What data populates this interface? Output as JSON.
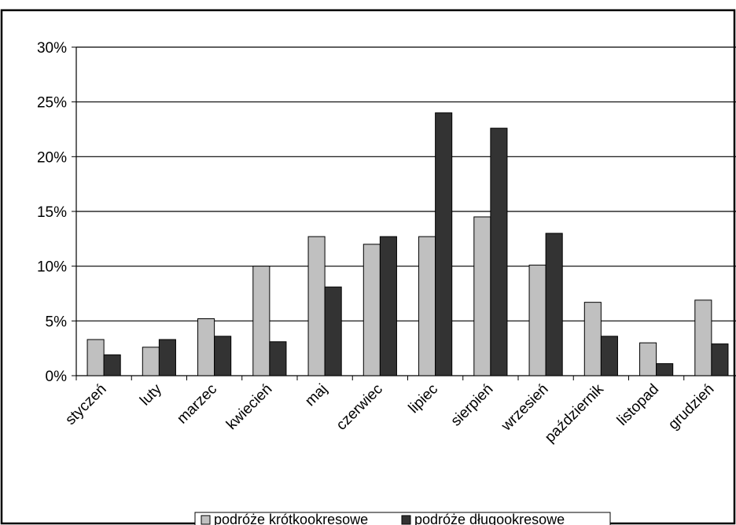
{
  "chart_data": {
    "type": "bar",
    "categories": [
      "styczeń",
      "luty",
      "marzec",
      "kwiecień",
      "maj",
      "czerwiec",
      "lipiec",
      "sierpień",
      "wrzesień",
      "październik",
      "listopad",
      "grudzień"
    ],
    "series": [
      {
        "name": "podróże krótkookresowe",
        "color": "#c0c0c0",
        "values": [
          3.3,
          2.6,
          5.2,
          10.0,
          12.7,
          12.0,
          12.7,
          14.5,
          10.1,
          6.7,
          3.0,
          6.9
        ]
      },
      {
        "name": "podróże długookresowe",
        "color": "#333333",
        "values": [
          1.9,
          3.3,
          3.6,
          3.1,
          8.1,
          12.7,
          24.0,
          22.6,
          13.0,
          3.6,
          1.1,
          2.9
        ]
      }
    ],
    "y_ticks": [
      "0%",
      "5%",
      "10%",
      "15%",
      "20%",
      "25%",
      "30%"
    ],
    "ylim": [
      0,
      30
    ],
    "grid": true,
    "legend_position": "bottom"
  }
}
